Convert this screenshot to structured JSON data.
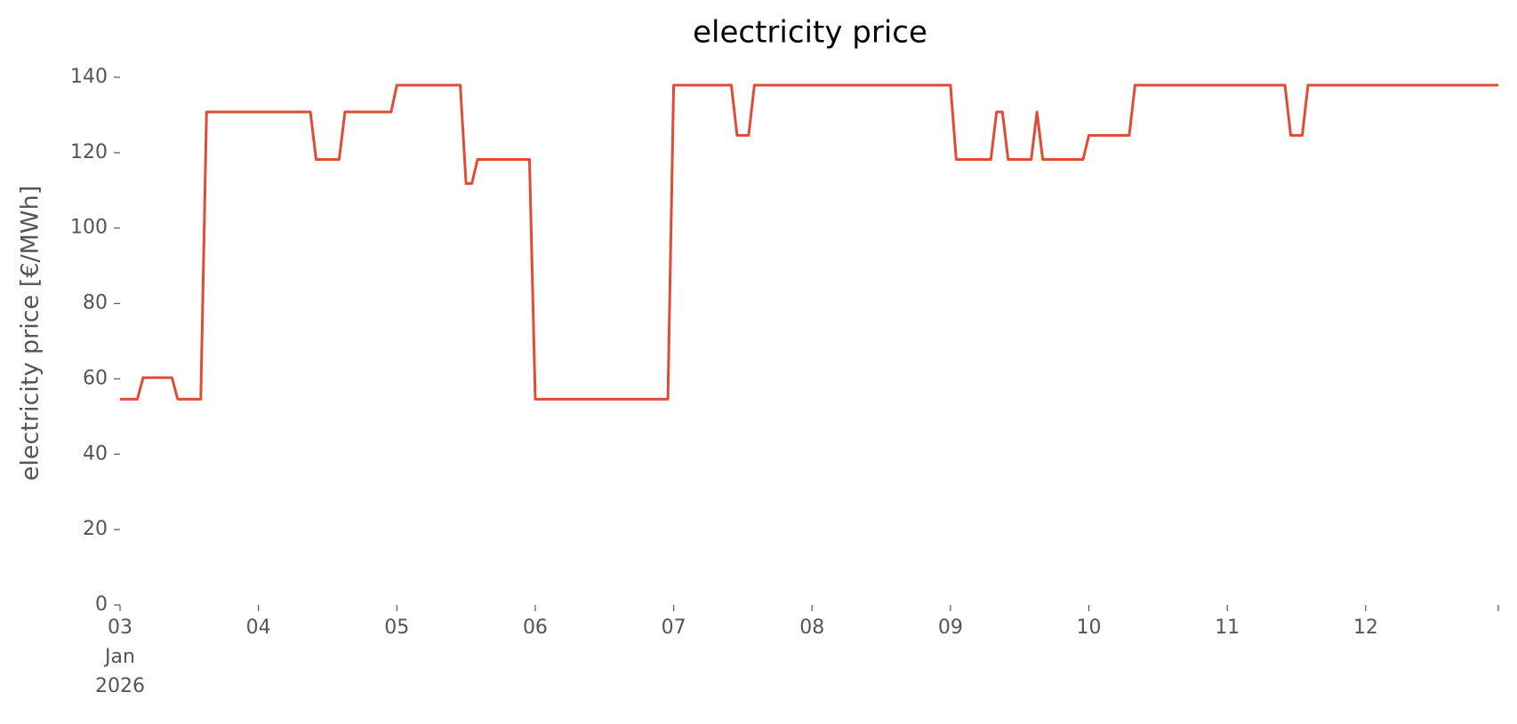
{
  "chart_data": {
    "type": "line",
    "title": "electricity price",
    "ylabel": "electricity price [€/MWh]",
    "x": [
      "2026-01-03T00:00",
      "2026-01-03T03:00",
      "2026-01-03T04:00",
      "2026-01-03T09:00",
      "2026-01-03T10:00",
      "2026-01-03T14:00",
      "2026-01-03T15:00",
      "2026-01-04T09:00",
      "2026-01-04T10:00",
      "2026-01-04T14:00",
      "2026-01-04T15:00",
      "2026-01-04T23:00",
      "2026-01-05T00:00",
      "2026-01-05T11:00",
      "2026-01-05T12:00",
      "2026-01-05T13:00",
      "2026-01-05T14:00",
      "2026-01-05T23:00",
      "2026-01-06T00:00",
      "2026-01-06T23:00",
      "2026-01-07T00:00",
      "2026-01-07T10:00",
      "2026-01-07T11:00",
      "2026-01-07T13:00",
      "2026-01-07T14:00",
      "2026-01-09T00:00",
      "2026-01-09T01:00",
      "2026-01-09T07:00",
      "2026-01-09T08:00",
      "2026-01-09T09:00",
      "2026-01-09T10:00",
      "2026-01-09T14:00",
      "2026-01-09T15:00",
      "2026-01-09T16:00",
      "2026-01-09T23:00",
      "2026-01-10T00:00",
      "2026-01-10T07:00",
      "2026-01-10T08:00",
      "2026-01-11T10:00",
      "2026-01-11T11:00",
      "2026-01-11T13:00",
      "2026-01-11T14:00",
      "2026-01-12T23:00"
    ],
    "series": [
      {
        "name": "electricity price",
        "color": "#E24A33",
        "values": [
          54.6,
          54.6,
          60.3,
          60.3,
          54.6,
          54.6,
          130.8,
          130.8,
          118.2,
          118.2,
          130.8,
          130.8,
          137.9,
          137.9,
          111.8,
          111.8,
          118.2,
          118.2,
          54.6,
          54.6,
          137.9,
          137.9,
          124.6,
          124.6,
          137.9,
          137.9,
          118.2,
          118.2,
          130.8,
          130.8,
          118.2,
          118.2,
          130.8,
          118.2,
          118.2,
          124.6,
          124.6,
          137.9,
          137.9,
          124.6,
          124.6,
          137.9,
          137.9
        ]
      }
    ],
    "xlim": [
      "2026-01-03T00:00",
      "2026-01-12T23:00"
    ],
    "xticks": [
      {
        "value": "2026-01-03T00:00",
        "label": "03\nJan\n2026"
      },
      {
        "value": "2026-01-04T00:00",
        "label": "04"
      },
      {
        "value": "2026-01-05T00:00",
        "label": "05"
      },
      {
        "value": "2026-01-06T00:00",
        "label": "06"
      },
      {
        "value": "2026-01-07T00:00",
        "label": "07"
      },
      {
        "value": "2026-01-08T00:00",
        "label": "08"
      },
      {
        "value": "2026-01-09T00:00",
        "label": "09"
      },
      {
        "value": "2026-01-10T00:00",
        "label": "10"
      },
      {
        "value": "2026-01-11T00:00",
        "label": "11"
      },
      {
        "value": "2026-01-12T00:00",
        "label": "12"
      },
      {
        "value": "2026-01-12T23:00",
        "label": null
      }
    ],
    "ylim": [
      0,
      140
    ],
    "yticks": [
      0,
      20,
      40,
      60,
      80,
      100,
      120,
      140
    ],
    "grid": false
  }
}
